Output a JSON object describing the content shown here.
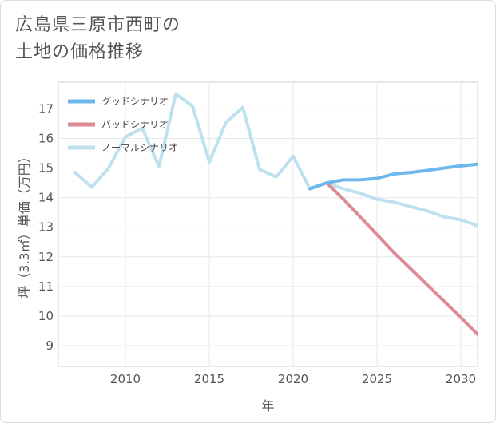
{
  "title_lines": [
    "広島県三原市西町の",
    "土地の価格推移"
  ],
  "chart_data": {
    "type": "line",
    "title": "広島県三原市西町の土地の価格推移",
    "xlabel": "年",
    "ylabel": "坪（3.3㎡）単価（万円）",
    "xlim": [
      2006,
      2031
    ],
    "ylim": [
      8.3,
      17.9
    ],
    "xticks": [
      2010,
      2015,
      2020,
      2025,
      2030
    ],
    "yticks": [
      9,
      10,
      11,
      12,
      13,
      14,
      15,
      16,
      17
    ],
    "grid": true,
    "legend_position": "top-left",
    "series": [
      {
        "name": "グッドシナリオ",
        "color": "#6cb8ee",
        "x": [
          2021,
          2022,
          2023,
          2024,
          2025,
          2026,
          2027,
          2028,
          2029,
          2030,
          2031
        ],
        "y": [
          14.3,
          14.5,
          14.6,
          14.6,
          14.65,
          14.8,
          14.85,
          14.92,
          15.0,
          15.07,
          15.13
        ]
      },
      {
        "name": "バッドシナリオ",
        "color": "#de8a94",
        "x": [
          2021,
          2022,
          2023,
          2024,
          2025,
          2026,
          2027,
          2028,
          2029,
          2030,
          2031
        ],
        "y": [
          14.3,
          14.5,
          13.95,
          13.35,
          12.75,
          12.15,
          11.6,
          11.05,
          10.5,
          9.95,
          9.38
        ]
      },
      {
        "name": "ノーマルシナリオ",
        "color": "#bfe0ee",
        "x": [
          2007,
          2008,
          2009,
          2010,
          2011,
          2012,
          2013,
          2014,
          2015,
          2016,
          2017,
          2018,
          2019,
          2020,
          2021,
          2022,
          2023,
          2024,
          2025,
          2026,
          2027,
          2028,
          2029,
          2030,
          2031
        ],
        "y": [
          14.85,
          14.35,
          15.0,
          16.05,
          16.35,
          15.05,
          17.5,
          17.1,
          15.2,
          16.55,
          17.05,
          14.95,
          14.7,
          15.4,
          14.3,
          14.5,
          14.3,
          14.15,
          13.95,
          13.85,
          13.7,
          13.55,
          13.35,
          13.25,
          13.05
        ]
      }
    ]
  }
}
